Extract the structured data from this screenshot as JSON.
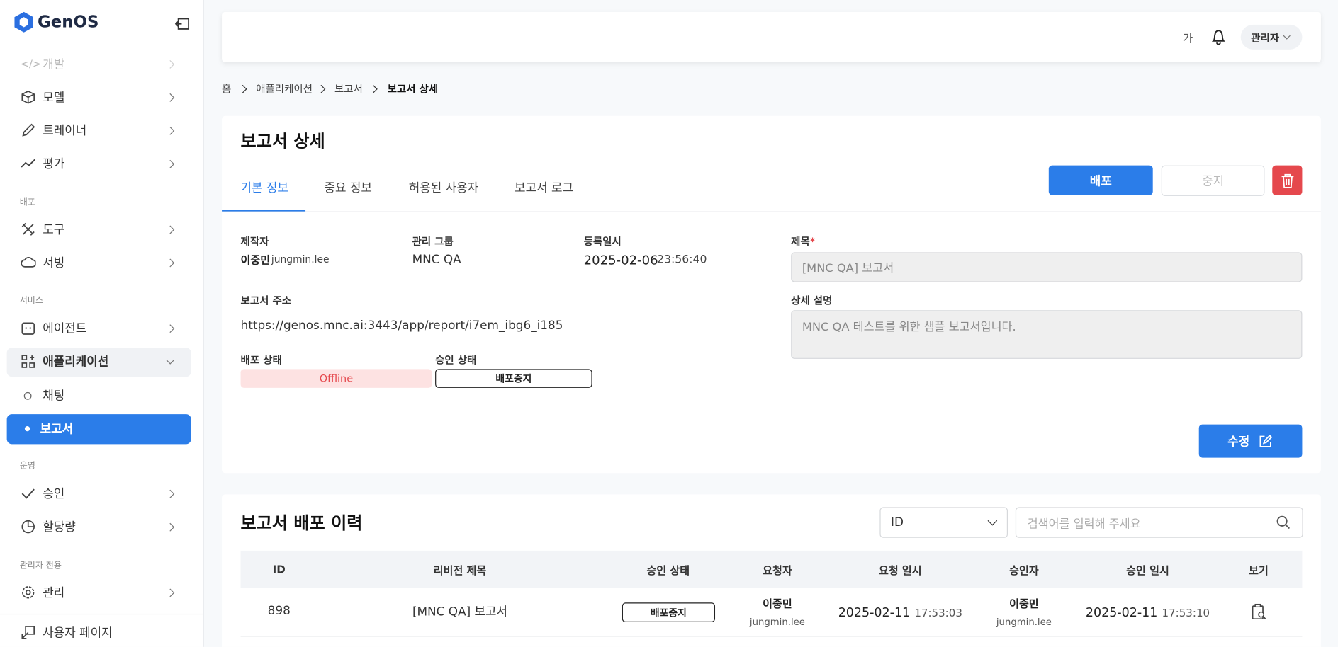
{
  "sidebar": {
    "logo": "GenOS",
    "items": [
      "개발",
      "모델",
      "트레이너",
      "평가",
      "도구",
      "서빙",
      "에이전트",
      "애플리케이션",
      "채팅",
      "보고서",
      "승인",
      "할당량",
      "관리",
      "사용자 페이지"
    ],
    "sections": [
      "배포",
      "서비스",
      "운영",
      "관리자 전용"
    ]
  },
  "header": {
    "font_toggle": "가",
    "user": "관리자"
  },
  "breadcrumb": [
    "홈",
    "애플리케이션",
    "보고서",
    "보고서 상세"
  ],
  "detail": {
    "title": "보고서 상세",
    "tabs": [
      "기본 정보",
      "중요 정보",
      "허용된 사용자",
      "보고서 로그"
    ],
    "buttons": {
      "deploy": "배포",
      "stop": "중지",
      "edit": "수정"
    },
    "fields": {
      "creator_label": "제작자",
      "creator_name": "이중민",
      "creator_id": "jungmin.lee",
      "group_label": "관리 그룹",
      "group": "MNC QA",
      "registered_label": "등록일시",
      "registered_date": "2025-02-06",
      "registered_time": "23:56:40",
      "url_label": "보고서 주소",
      "url": "https://genos.mnc.ai:3443/app/report/i7em_ibg6_i185",
      "deploy_status_label": "배포 상태",
      "deploy_status": "Offline",
      "approval_status_label": "승인 상태",
      "approval_status": "배포중지",
      "title_label": "제목",
      "required_mark": "*",
      "title_value": "[MNC QA] 보고서",
      "description_label": "상세 설명",
      "description": "MNC QA 테스트를 위한 샘플 보고서입니다."
    }
  },
  "history": {
    "title": "보고서 배포 이력",
    "filter": "ID",
    "search_placeholder": "검색어를 입력해 주세요",
    "columns": [
      "ID",
      "리비전 제목",
      "승인 상태",
      "요청자",
      "요청 일시",
      "승인자",
      "승인 일시",
      "보기"
    ],
    "rows": [
      {
        "id": "898",
        "revision_title": "[MNC QA] 보고서",
        "approval_status": "배포중지",
        "requester_name": "이중민",
        "requester_id": "jungmin.lee",
        "request_date": "2025-02-11",
        "request_time": "17:53:03",
        "approver_name": "이중민",
        "approver_id": "jungmin.lee",
        "approve_date": "2025-02-11",
        "approve_time": "17:53:10"
      }
    ]
  }
}
